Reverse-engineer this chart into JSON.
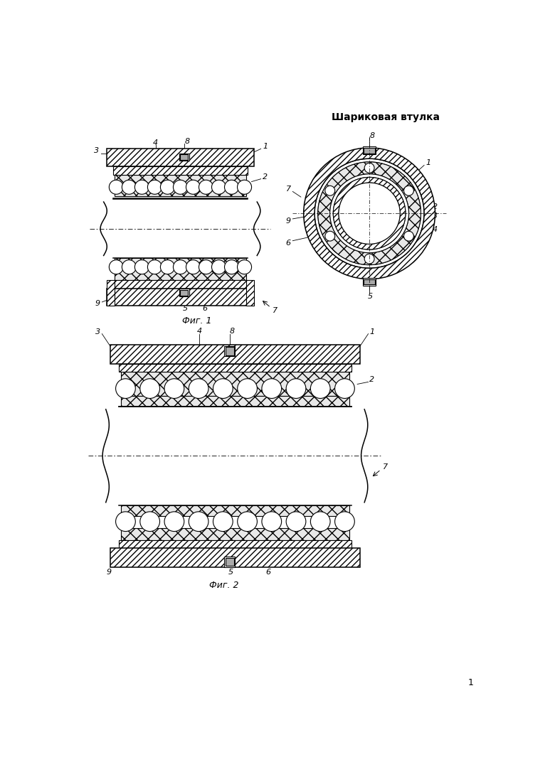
{
  "title": "Шариковая втулка",
  "fig1_label": "Фиг. 1",
  "fig2_label": "Фиг. 2",
  "page_number": "1",
  "bg_color": "#ffffff",
  "line_color": "#000000"
}
